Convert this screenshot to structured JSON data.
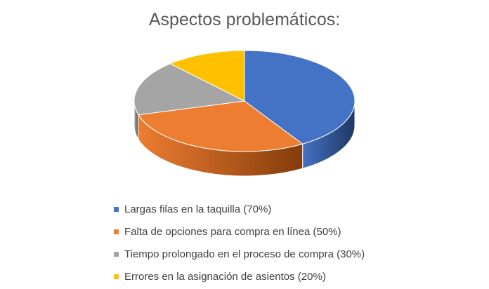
{
  "chart_data": {
    "type": "pie",
    "title": "Aspectos problemáticos:",
    "categories": [
      "Largas filas en la taquilla (70%)",
      "Falta de opciones para compra en línea (50%)",
      "Tiempo prolongado en el proceso de compra (30%)",
      "Errores en la asignación de asientos (20%)"
    ],
    "values": [
      70,
      50,
      30,
      20
    ],
    "colors": [
      "#4472C4",
      "#ED7D31",
      "#A5A5A5",
      "#FFC000"
    ],
    "side_colors": [
      "#1F3864",
      "#843C0C",
      "#595959",
      "#7F6000"
    ],
    "legend_position": "bottom",
    "pie_style": "3d"
  }
}
